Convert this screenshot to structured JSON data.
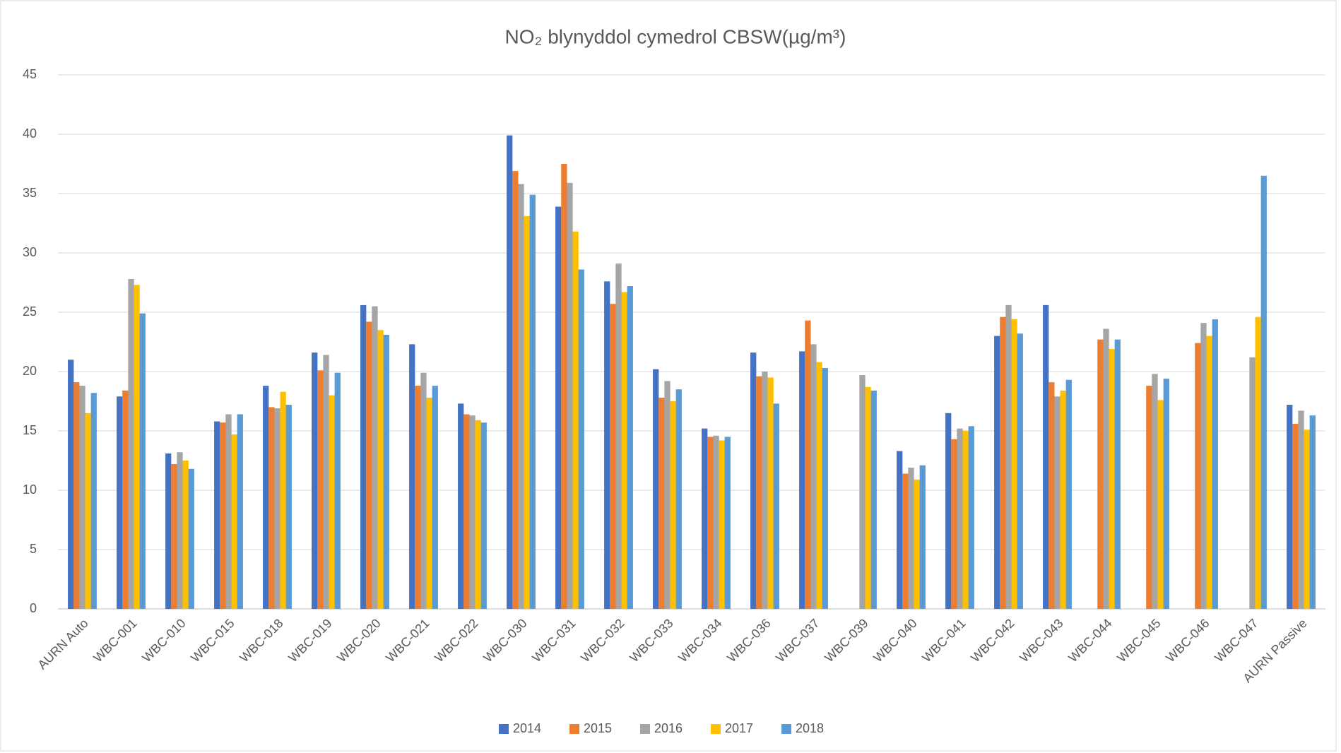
{
  "chart_data": {
    "type": "bar",
    "title": "NO₂ blynyddol cymedrol CBSW(µg/m³)",
    "categories": [
      "AURN Auto",
      "WBC-001",
      "WBC-010",
      "WBC-015",
      "WBC-018",
      "WBC-019",
      "WBC-020",
      "WBC-021",
      "WBC-022",
      "WBC-030",
      "WBC-031",
      "WBC-032",
      "WBC-033",
      "WBC-034",
      "WBC-036",
      "WBC-037",
      "WBC-039",
      "WBC-040",
      "WBC-041",
      "WBC-042",
      "WBC-043",
      "WBC-044",
      "WBC-045",
      "WBC-046",
      "WBC-047",
      "AURN Passive"
    ],
    "series": [
      {
        "name": "2014",
        "color": "#4472c4",
        "values": [
          21.0,
          17.9,
          13.1,
          15.8,
          18.8,
          21.6,
          25.6,
          22.3,
          17.3,
          39.9,
          33.9,
          27.6,
          20.2,
          15.2,
          21.6,
          21.7,
          null,
          13.3,
          16.5,
          23.0,
          25.6,
          null,
          null,
          null,
          null,
          17.2
        ]
      },
      {
        "name": "2015",
        "color": "#ed7d31",
        "values": [
          19.1,
          18.4,
          12.2,
          15.7,
          17.0,
          20.1,
          24.2,
          18.8,
          16.4,
          36.9,
          37.5,
          25.7,
          17.8,
          14.5,
          19.6,
          24.3,
          null,
          11.4,
          14.3,
          24.6,
          19.1,
          22.7,
          18.8,
          22.4,
          null,
          15.6
        ]
      },
      {
        "name": "2016",
        "color": "#a5a5a5",
        "values": [
          18.8,
          27.8,
          13.2,
          16.4,
          16.9,
          21.4,
          25.5,
          19.9,
          16.3,
          35.8,
          35.9,
          29.1,
          19.2,
          14.6,
          20.0,
          22.3,
          19.7,
          11.9,
          15.2,
          25.6,
          17.9,
          23.6,
          19.8,
          24.1,
          21.2,
          16.7
        ]
      },
      {
        "name": "2017",
        "color": "#ffc000",
        "values": [
          16.5,
          27.3,
          12.5,
          14.7,
          18.3,
          18.0,
          23.5,
          17.8,
          15.9,
          33.1,
          31.8,
          26.7,
          17.5,
          14.2,
          19.5,
          20.8,
          18.7,
          10.9,
          15.0,
          24.4,
          18.4,
          21.9,
          17.6,
          23.0,
          24.6,
          15.1
        ]
      },
      {
        "name": "2018",
        "color": "#5b9bd5",
        "values": [
          18.2,
          24.9,
          11.8,
          16.4,
          17.2,
          19.9,
          23.1,
          18.8,
          15.7,
          34.9,
          28.6,
          27.2,
          18.5,
          14.5,
          17.3,
          20.3,
          18.4,
          12.1,
          15.4,
          23.2,
          19.3,
          22.7,
          19.4,
          24.4,
          36.5,
          16.3
        ]
      }
    ],
    "ylim": [
      0,
      45
    ],
    "yticks": [
      0,
      5,
      10,
      15,
      20,
      25,
      30,
      35,
      40,
      45
    ],
    "grid": true,
    "legend": "bottom"
  }
}
